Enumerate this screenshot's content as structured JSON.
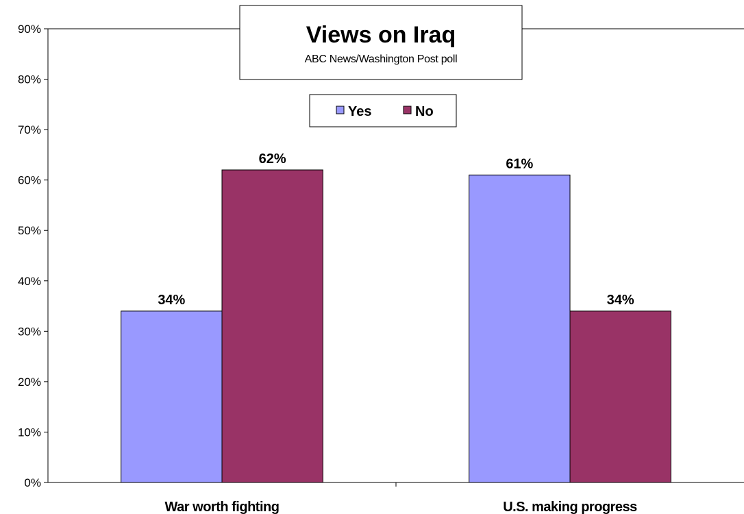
{
  "chart_data": {
    "type": "bar",
    "title": "Views on Iraq",
    "subtitle": "ABC News/Washington Post poll",
    "categories": [
      "War worth fighting",
      "U.S. making progress"
    ],
    "series": [
      {
        "name": "Yes",
        "values": [
          34,
          61
        ],
        "labels": [
          "34%",
          "61%"
        ],
        "color": "#9999FF"
      },
      {
        "name": "No",
        "values": [
          62,
          34
        ],
        "labels": [
          "62%",
          "34%"
        ],
        "color": "#993366"
      }
    ],
    "ylim": [
      0,
      90
    ],
    "yticks": [
      0,
      10,
      20,
      30,
      40,
      50,
      60,
      70,
      80,
      90
    ],
    "ytick_labels": [
      "0%",
      "10%",
      "20%",
      "30%",
      "40%",
      "50%",
      "60%",
      "70%",
      "80%",
      "90%"
    ],
    "xlabel": "",
    "ylabel": "",
    "grid": false,
    "legend_position": "top-center"
  }
}
